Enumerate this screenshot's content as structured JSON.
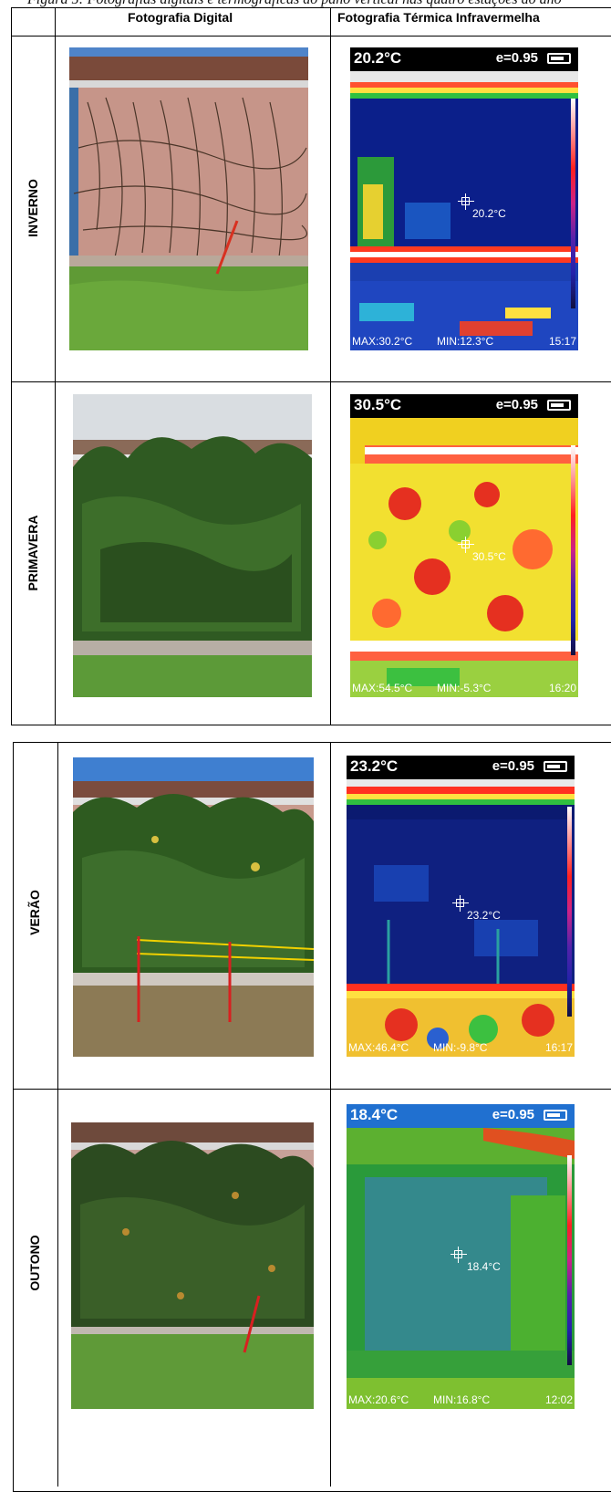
{
  "caption": "Figura 5: Fotografias digitais e termográficas do pano vertical nas quatro estações do ano",
  "table": {
    "col_digital": "Fotografia Digital",
    "col_thermal": "Fotografia Térmica Infravermelha"
  },
  "seasons": [
    {
      "name": "INVERNO",
      "temp": "20.2°C",
      "emissivity": "e=0.95",
      "spot": "20.2°C",
      "max": "MAX:30.2°C",
      "min": "MIN:12.3°C",
      "time": "15:17"
    },
    {
      "name": "PRIMAVERA",
      "temp": "30.5°C",
      "emissivity": "e=0.95",
      "spot": "30.5°C",
      "max": "MAX:54.5°C",
      "min": "MIN:-5.3°C",
      "time": "16:20"
    },
    {
      "name": "VERÃO",
      "temp": "23.2°C",
      "emissivity": "e=0.95",
      "spot": "23.2°C",
      "max": "MAX:46.4°C",
      "min": "MIN:-9.8°C",
      "time": "16:17"
    },
    {
      "name": "OUTONO",
      "temp": "18.4°C",
      "emissivity": "e=0.95",
      "spot": "18.4°C",
      "max": "MAX:20.6°C",
      "min": "MIN:16.8°C",
      "time": "12:02"
    }
  ],
  "colors": {
    "grid": "#000000",
    "thermal_cold": "#0b1f8a",
    "thermal_hot": "#ff2a10",
    "grass": "#5f9a35"
  }
}
